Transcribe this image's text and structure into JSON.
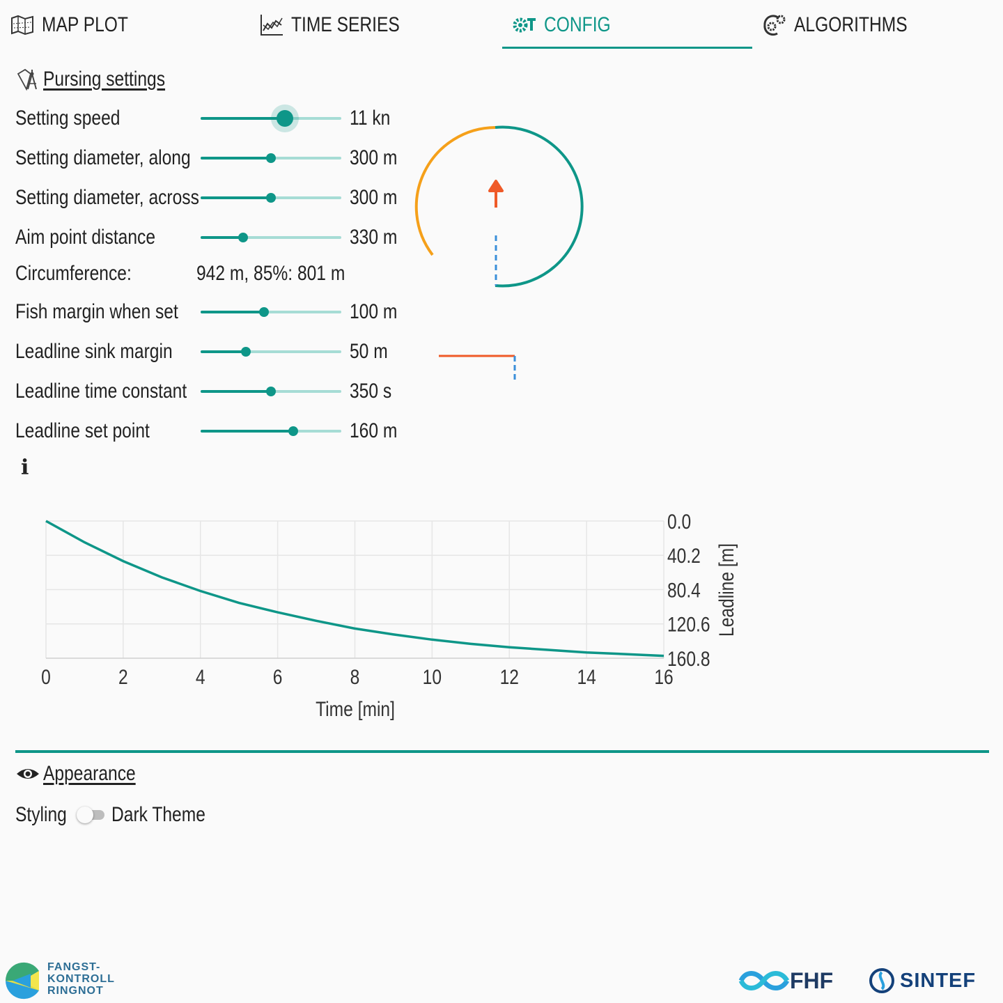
{
  "tabs": [
    {
      "label": "MAP PLOT",
      "icon": "map-icon"
    },
    {
      "label": "TIME SERIES",
      "icon": "line-chart-icon"
    },
    {
      "label": "CONFIG",
      "icon": "gears-icon",
      "active": true
    },
    {
      "label": "ALGORITHMS",
      "icon": "cog-brain-icon"
    }
  ],
  "pursing": {
    "title": "Pursing settings",
    "icon": "drafting-compass-icon",
    "rows": [
      {
        "label": "Setting speed",
        "value": "11 kn",
        "fraction": 0.6
      },
      {
        "label": "Setting diameter, along",
        "value": "300 m",
        "fraction": 0.5
      },
      {
        "label": "Setting diameter, across",
        "value": "300 m",
        "fraction": 0.5
      },
      {
        "label": "Aim point distance",
        "value": "330 m",
        "fraction": 0.3
      },
      {
        "label": "Fish margin when set",
        "value": "100 m",
        "fraction": 0.45
      },
      {
        "label": "Leadline sink margin",
        "value": "50 m",
        "fraction": 0.32
      },
      {
        "label": "Leadline time constant",
        "value": "350 s",
        "fraction": 0.5
      },
      {
        "label": "Leadline set point",
        "value": "160 m",
        "fraction": 0.66
      }
    ],
    "circumference": {
      "label": "Circumference:",
      "value": "942 m,  85%: 801 m"
    },
    "info_icon": "i"
  },
  "colors": {
    "accent": "#0e9688",
    "orange": "#f5a01a",
    "red": "#ef5a28",
    "blue": "#3a8fd9"
  },
  "chart_data": {
    "type": "line",
    "xlabel": "Time [min]",
    "ylabel": "Leadline [m]",
    "x_ticks": [
      "0",
      "2",
      "4",
      "6",
      "8",
      "10",
      "12",
      "14",
      "16"
    ],
    "y_ticks": [
      "0.0",
      "40.2",
      "80.4",
      "120.6",
      "160.8"
    ],
    "xlim": [
      0,
      16
    ],
    "ylim": [
      0,
      160.8
    ],
    "y_inverted": true,
    "grid": true,
    "x": [
      0,
      1,
      2,
      3,
      4,
      5,
      6,
      7,
      8,
      9,
      10,
      11,
      12,
      13,
      14,
      15,
      16
    ],
    "y": [
      0,
      25,
      47,
      66,
      82,
      96,
      107,
      117,
      126,
      133,
      139,
      144,
      148,
      151,
      154,
      156,
      158
    ]
  },
  "appearance": {
    "title": "Appearance",
    "icon": "eye-icon",
    "styling_label": "Styling",
    "toggle_label": "Dark Theme",
    "dark_theme": false
  },
  "footer": {
    "fk_lines": [
      "FANGST-",
      "KONTROLL",
      "RINGNOT"
    ],
    "fhf": "FHF",
    "sintef": "SINTEF"
  }
}
